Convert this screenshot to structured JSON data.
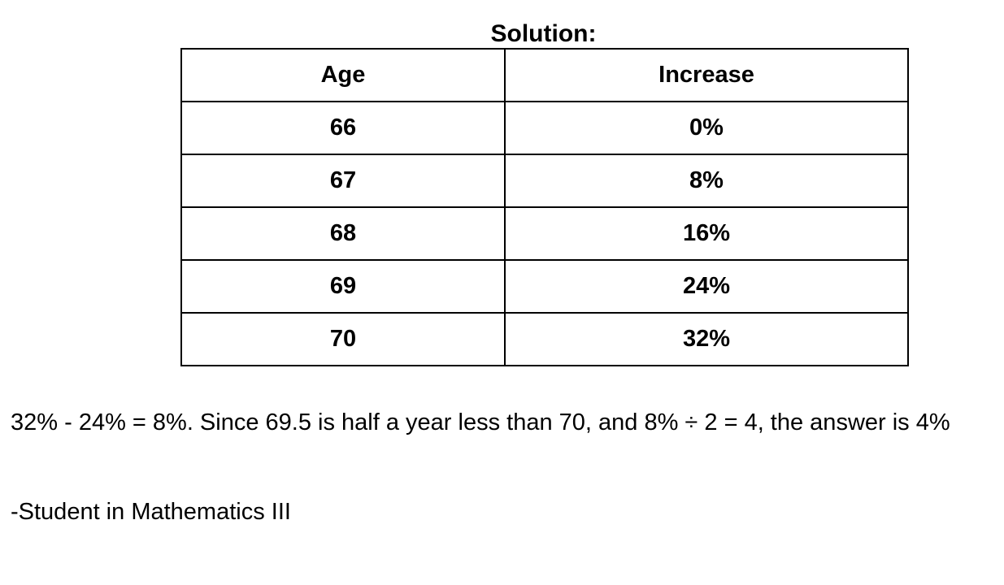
{
  "title": "Solution:",
  "table": {
    "headers": [
      "Age",
      "Increase"
    ],
    "rows": [
      [
        "66",
        "0%"
      ],
      [
        "67",
        "8%"
      ],
      [
        "68",
        "16%"
      ],
      [
        "69",
        "24%"
      ],
      [
        "70",
        "32%"
      ]
    ]
  },
  "explanation": "32% - 24% = 8%. Since 69.5 is half a year less than 70, and 8% ÷ 2 = 4, the answer is 4%",
  "signature": "-Student in Mathematics III"
}
